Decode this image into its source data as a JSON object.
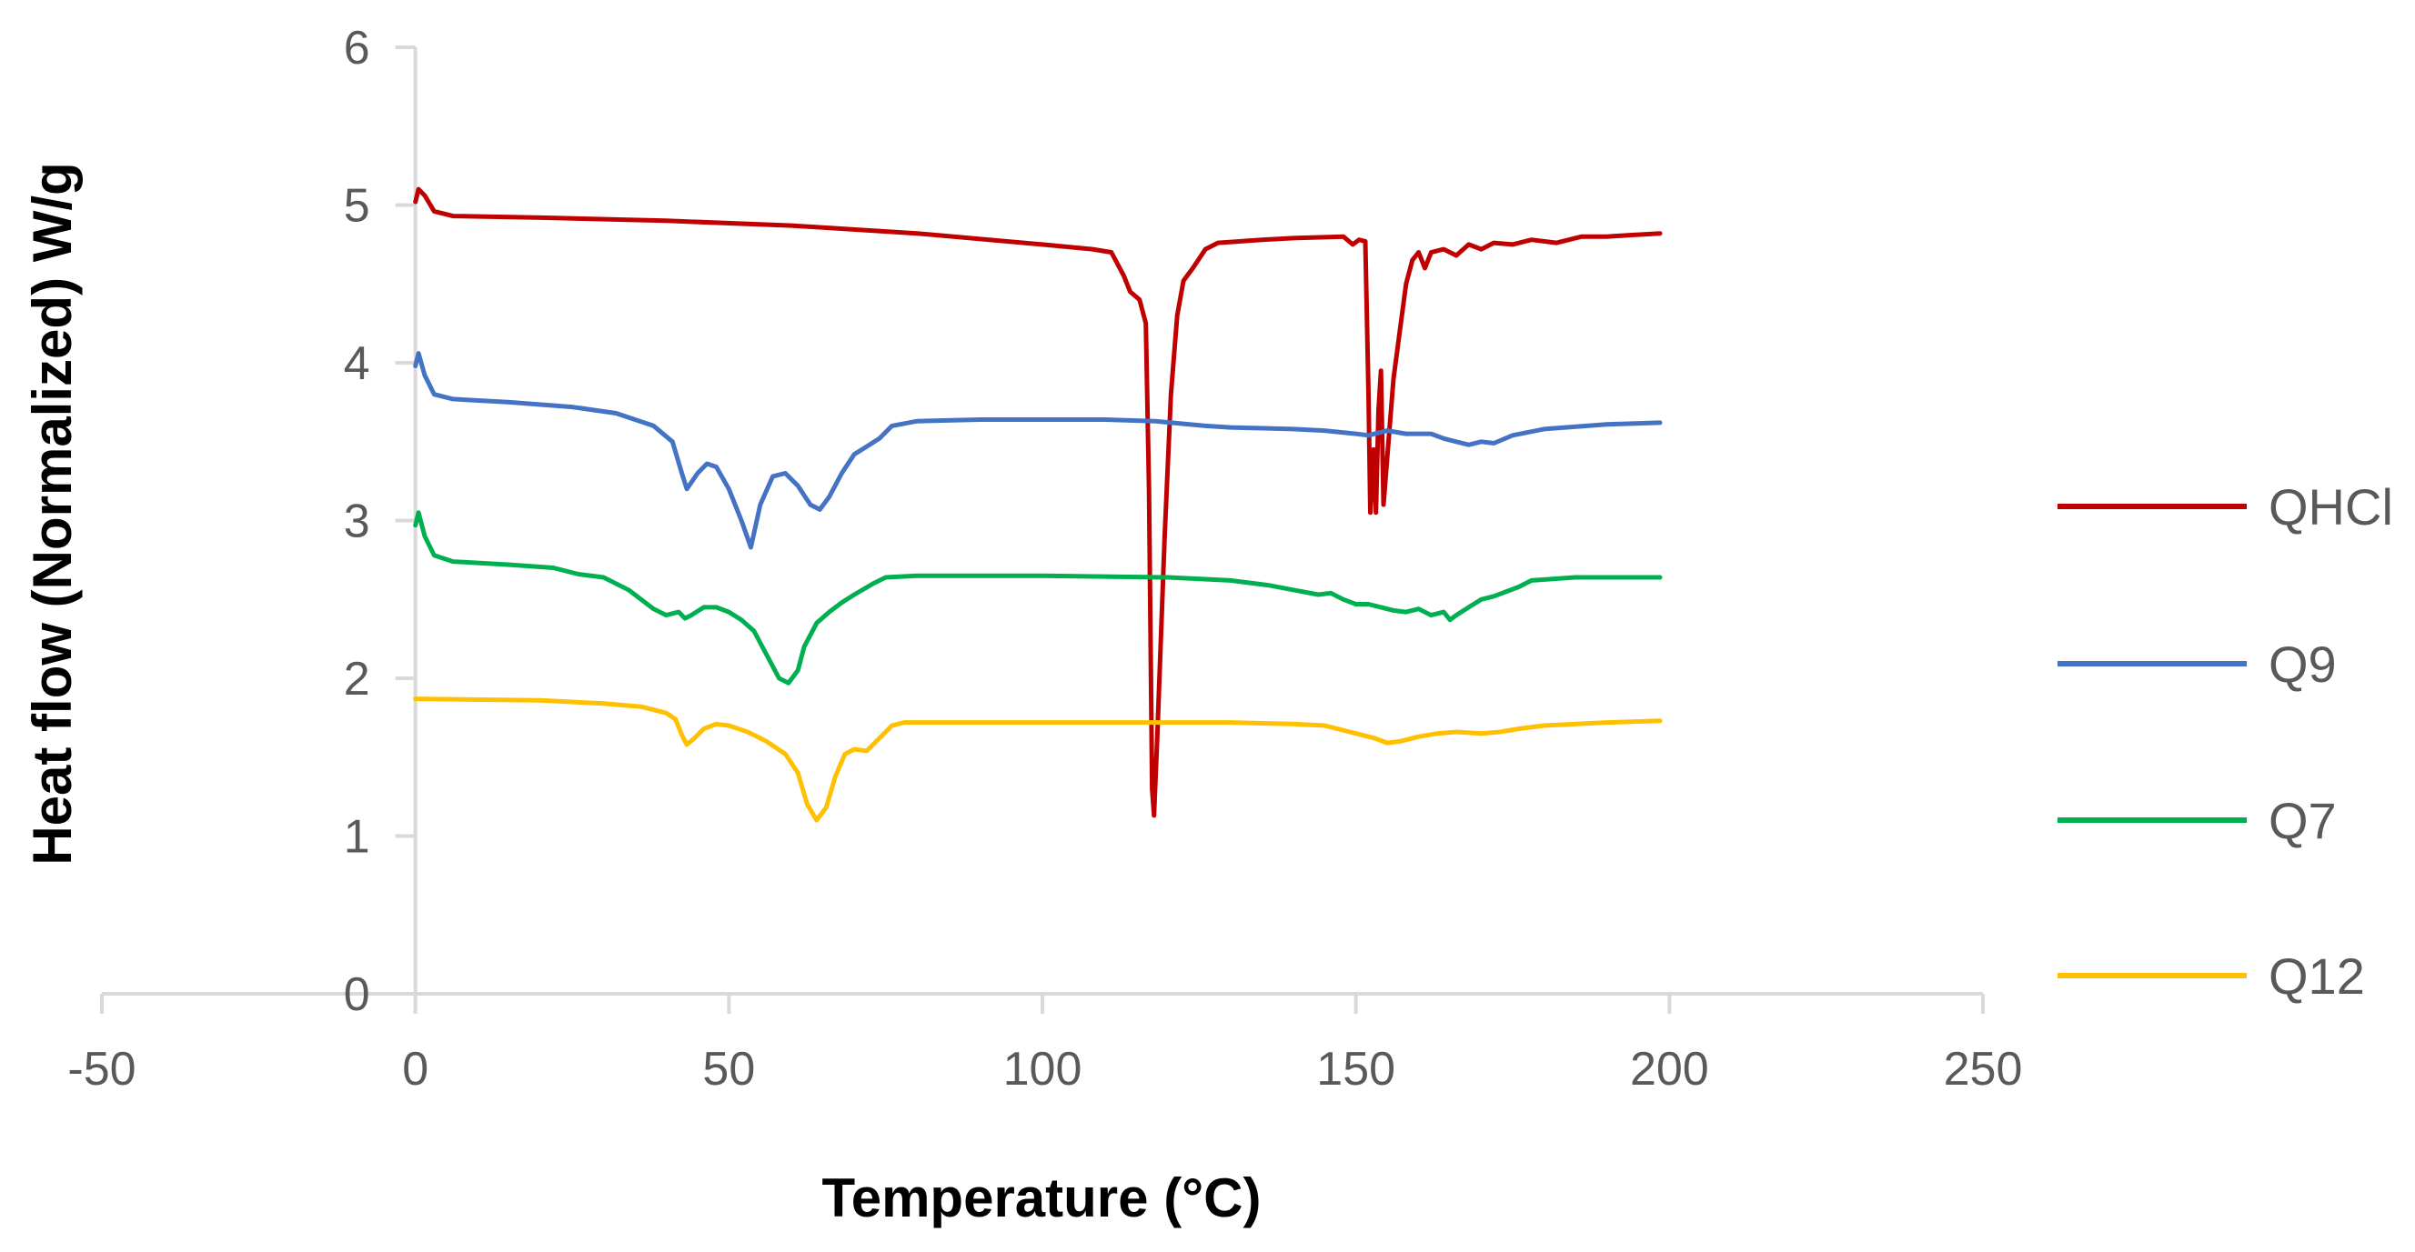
{
  "chart_data": {
    "type": "line",
    "title": "",
    "xlabel": "Temperature (°C)",
    "ylabel": "Heat flow (Normalized)  W/g",
    "xlim": [
      -50,
      250
    ],
    "ylim": [
      0,
      6
    ],
    "xticks": [
      -50,
      0,
      50,
      100,
      150,
      200,
      250
    ],
    "yticks": [
      0,
      1,
      2,
      3,
      4,
      5,
      6
    ],
    "grid": false,
    "legend_position": "right",
    "series": [
      {
        "name": "QHCl",
        "color": "#c00000",
        "points": [
          [
            0,
            5.02
          ],
          [
            0.5,
            5.1
          ],
          [
            1.5,
            5.06
          ],
          [
            3,
            4.96
          ],
          [
            6,
            4.93
          ],
          [
            20,
            4.92
          ],
          [
            40,
            4.9
          ],
          [
            60,
            4.87
          ],
          [
            80,
            4.82
          ],
          [
            100,
            4.75
          ],
          [
            108,
            4.72
          ],
          [
            111,
            4.7
          ],
          [
            113,
            4.55
          ],
          [
            114,
            4.45
          ],
          [
            115.5,
            4.4
          ],
          [
            116.5,
            4.25
          ],
          [
            117,
            3.2
          ],
          [
            117.5,
            1.3
          ],
          [
            117.8,
            1.13
          ],
          [
            118.3,
            1.6
          ],
          [
            119.5,
            2.9
          ],
          [
            120.5,
            3.8
          ],
          [
            121.5,
            4.3
          ],
          [
            122.5,
            4.52
          ],
          [
            124,
            4.6
          ],
          [
            126,
            4.72
          ],
          [
            128,
            4.76
          ],
          [
            135,
            4.78
          ],
          [
            140,
            4.79
          ],
          [
            148,
            4.8
          ],
          [
            149.5,
            4.75
          ],
          [
            150.5,
            4.78
          ],
          [
            151.5,
            4.77
          ],
          [
            152,
            3.8
          ],
          [
            152.3,
            3.05
          ],
          [
            152.8,
            3.45
          ],
          [
            153.2,
            3.05
          ],
          [
            153.6,
            3.7
          ],
          [
            154,
            3.95
          ],
          [
            154.4,
            3.1
          ],
          [
            155,
            3.4
          ],
          [
            156,
            3.9
          ],
          [
            157,
            4.2
          ],
          [
            158,
            4.5
          ],
          [
            159,
            4.65
          ],
          [
            160,
            4.7
          ],
          [
            161,
            4.6
          ],
          [
            162,
            4.7
          ],
          [
            164,
            4.72
          ],
          [
            166,
            4.68
          ],
          [
            168,
            4.75
          ],
          [
            170,
            4.72
          ],
          [
            172,
            4.76
          ],
          [
            175,
            4.75
          ],
          [
            178,
            4.78
          ],
          [
            182,
            4.76
          ],
          [
            186,
            4.8
          ],
          [
            190,
            4.8
          ],
          [
            194,
            4.81
          ],
          [
            198.5,
            4.82
          ]
        ]
      },
      {
        "name": "Q9",
        "color": "#4472c4",
        "points": [
          [
            0,
            3.98
          ],
          [
            0.5,
            4.06
          ],
          [
            1.5,
            3.92
          ],
          [
            3,
            3.8
          ],
          [
            6,
            3.77
          ],
          [
            15,
            3.75
          ],
          [
            25,
            3.72
          ],
          [
            32,
            3.68
          ],
          [
            38,
            3.6
          ],
          [
            41,
            3.5
          ],
          [
            42.5,
            3.3
          ],
          [
            43.3,
            3.2
          ],
          [
            45,
            3.3
          ],
          [
            46.5,
            3.36
          ],
          [
            48,
            3.34
          ],
          [
            50,
            3.2
          ],
          [
            52,
            3.0
          ],
          [
            53.5,
            2.83
          ],
          [
            55,
            3.1
          ],
          [
            57,
            3.28
          ],
          [
            59,
            3.3
          ],
          [
            61,
            3.22
          ],
          [
            63,
            3.1
          ],
          [
            64.5,
            3.07
          ],
          [
            66,
            3.15
          ],
          [
            68,
            3.3
          ],
          [
            70,
            3.42
          ],
          [
            72,
            3.47
          ],
          [
            74,
            3.52
          ],
          [
            76,
            3.6
          ],
          [
            80,
            3.63
          ],
          [
            90,
            3.64
          ],
          [
            100,
            3.64
          ],
          [
            110,
            3.64
          ],
          [
            118,
            3.63
          ],
          [
            126,
            3.6
          ],
          [
            130,
            3.59
          ],
          [
            140,
            3.58
          ],
          [
            145,
            3.57
          ],
          [
            150,
            3.55
          ],
          [
            152,
            3.54
          ],
          [
            155,
            3.57
          ],
          [
            158,
            3.55
          ],
          [
            162,
            3.55
          ],
          [
            164,
            3.52
          ],
          [
            166,
            3.5
          ],
          [
            168,
            3.48
          ],
          [
            170,
            3.5
          ],
          [
            172,
            3.49
          ],
          [
            175,
            3.54
          ],
          [
            180,
            3.58
          ],
          [
            190,
            3.61
          ],
          [
            198.5,
            3.62
          ]
        ]
      },
      {
        "name": "Q7",
        "color": "#00b050",
        "points": [
          [
            0,
            2.97
          ],
          [
            0.5,
            3.05
          ],
          [
            1.5,
            2.9
          ],
          [
            3,
            2.78
          ],
          [
            6,
            2.74
          ],
          [
            15,
            2.72
          ],
          [
            22,
            2.7
          ],
          [
            26,
            2.66
          ],
          [
            30,
            2.64
          ],
          [
            34,
            2.56
          ],
          [
            38,
            2.44
          ],
          [
            40,
            2.4
          ],
          [
            42,
            2.42
          ],
          [
            43,
            2.38
          ],
          [
            44,
            2.4
          ],
          [
            46,
            2.45
          ],
          [
            48,
            2.45
          ],
          [
            50,
            2.42
          ],
          [
            52,
            2.37
          ],
          [
            54,
            2.3
          ],
          [
            56,
            2.15
          ],
          [
            58,
            2.0
          ],
          [
            59.5,
            1.97
          ],
          [
            61,
            2.05
          ],
          [
            62,
            2.2
          ],
          [
            64,
            2.35
          ],
          [
            66,
            2.42
          ],
          [
            68,
            2.48
          ],
          [
            70,
            2.53
          ],
          [
            73,
            2.6
          ],
          [
            75,
            2.64
          ],
          [
            80,
            2.65
          ],
          [
            100,
            2.65
          ],
          [
            120,
            2.64
          ],
          [
            130,
            2.62
          ],
          [
            136,
            2.59
          ],
          [
            140,
            2.56
          ],
          [
            144,
            2.53
          ],
          [
            146,
            2.54
          ],
          [
            148,
            2.5
          ],
          [
            150,
            2.47
          ],
          [
            152,
            2.47
          ],
          [
            154,
            2.45
          ],
          [
            156,
            2.43
          ],
          [
            158,
            2.42
          ],
          [
            160,
            2.44
          ],
          [
            162,
            2.4
          ],
          [
            164,
            2.42
          ],
          [
            165,
            2.37
          ],
          [
            166,
            2.4
          ],
          [
            168,
            2.45
          ],
          [
            170,
            2.5
          ],
          [
            172,
            2.52
          ],
          [
            174,
            2.55
          ],
          [
            176,
            2.58
          ],
          [
            178,
            2.62
          ],
          [
            185,
            2.64
          ],
          [
            198.5,
            2.64
          ]
        ]
      },
      {
        "name": "Q12",
        "color": "#ffc000",
        "points": [
          [
            0,
            1.87
          ],
          [
            20,
            1.86
          ],
          [
            30,
            1.84
          ],
          [
            36,
            1.82
          ],
          [
            40,
            1.78
          ],
          [
            41.5,
            1.74
          ],
          [
            42.5,
            1.64
          ],
          [
            43.3,
            1.58
          ],
          [
            44.5,
            1.62
          ],
          [
            46,
            1.68
          ],
          [
            48,
            1.71
          ],
          [
            50,
            1.7
          ],
          [
            53,
            1.66
          ],
          [
            56,
            1.6
          ],
          [
            59,
            1.52
          ],
          [
            61,
            1.4
          ],
          [
            62.5,
            1.2
          ],
          [
            64,
            1.1
          ],
          [
            65.5,
            1.18
          ],
          [
            67,
            1.38
          ],
          [
            68.5,
            1.52
          ],
          [
            70,
            1.55
          ],
          [
            72,
            1.54
          ],
          [
            74,
            1.62
          ],
          [
            76,
            1.7
          ],
          [
            78,
            1.72
          ],
          [
            90,
            1.72
          ],
          [
            110,
            1.72
          ],
          [
            130,
            1.72
          ],
          [
            140,
            1.71
          ],
          [
            145,
            1.7
          ],
          [
            150,
            1.65
          ],
          [
            153,
            1.62
          ],
          [
            155,
            1.59
          ],
          [
            157,
            1.6
          ],
          [
            160,
            1.63
          ],
          [
            163,
            1.65
          ],
          [
            166,
            1.66
          ],
          [
            170,
            1.65
          ],
          [
            173,
            1.66
          ],
          [
            176,
            1.68
          ],
          [
            180,
            1.7
          ],
          [
            190,
            1.72
          ],
          [
            198.5,
            1.73
          ]
        ]
      }
    ]
  }
}
